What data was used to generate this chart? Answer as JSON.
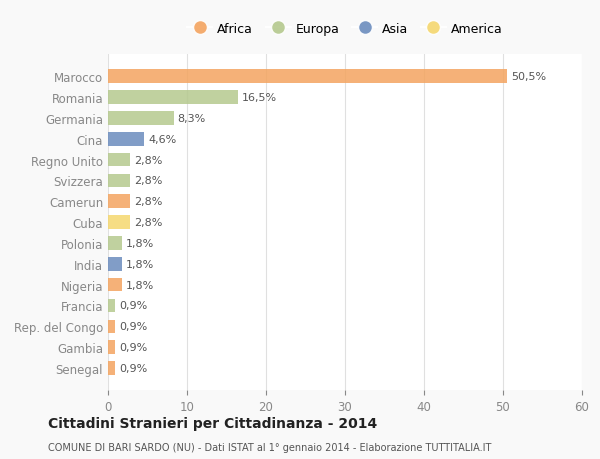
{
  "categories": [
    "Marocco",
    "Romania",
    "Germania",
    "Cina",
    "Regno Unito",
    "Svizzera",
    "Camerun",
    "Cuba",
    "Polonia",
    "India",
    "Nigeria",
    "Francia",
    "Rep. del Congo",
    "Gambia",
    "Senegal"
  ],
  "values": [
    50.5,
    16.5,
    8.3,
    4.6,
    2.8,
    2.8,
    2.8,
    2.8,
    1.8,
    1.8,
    1.8,
    0.9,
    0.9,
    0.9,
    0.9
  ],
  "labels": [
    "50,5%",
    "16,5%",
    "8,3%",
    "4,6%",
    "2,8%",
    "2,8%",
    "2,8%",
    "2,8%",
    "1,8%",
    "1,8%",
    "1,8%",
    "0,9%",
    "0,9%",
    "0,9%",
    "0,9%"
  ],
  "continents": [
    "Africa",
    "Europa",
    "Europa",
    "Asia",
    "Europa",
    "Europa",
    "Africa",
    "America",
    "Europa",
    "Asia",
    "Africa",
    "Europa",
    "Africa",
    "Africa",
    "Africa"
  ],
  "colors": {
    "Africa": "#F4A460",
    "Europa": "#B5C98E",
    "Asia": "#6B8CBE",
    "America": "#F5D76E"
  },
  "legend_order": [
    "Africa",
    "Europa",
    "Asia",
    "America"
  ],
  "legend_colors": {
    "Africa": "#F4A460",
    "Europa": "#B5C98E",
    "Asia": "#6B8CBE",
    "America": "#F5D76E"
  },
  "title": "Cittadini Stranieri per Cittadinanza - 2014",
  "subtitle": "COMUNE DI BARI SARDO (NU) - Dati ISTAT al 1° gennaio 2014 - Elaborazione TUTTITALIA.IT",
  "xlim": [
    0,
    60
  ],
  "xticks": [
    0,
    10,
    20,
    30,
    40,
    50,
    60
  ],
  "background_color": "#f9f9f9",
  "plot_background": "#ffffff",
  "grid_color": "#e0e0e0"
}
